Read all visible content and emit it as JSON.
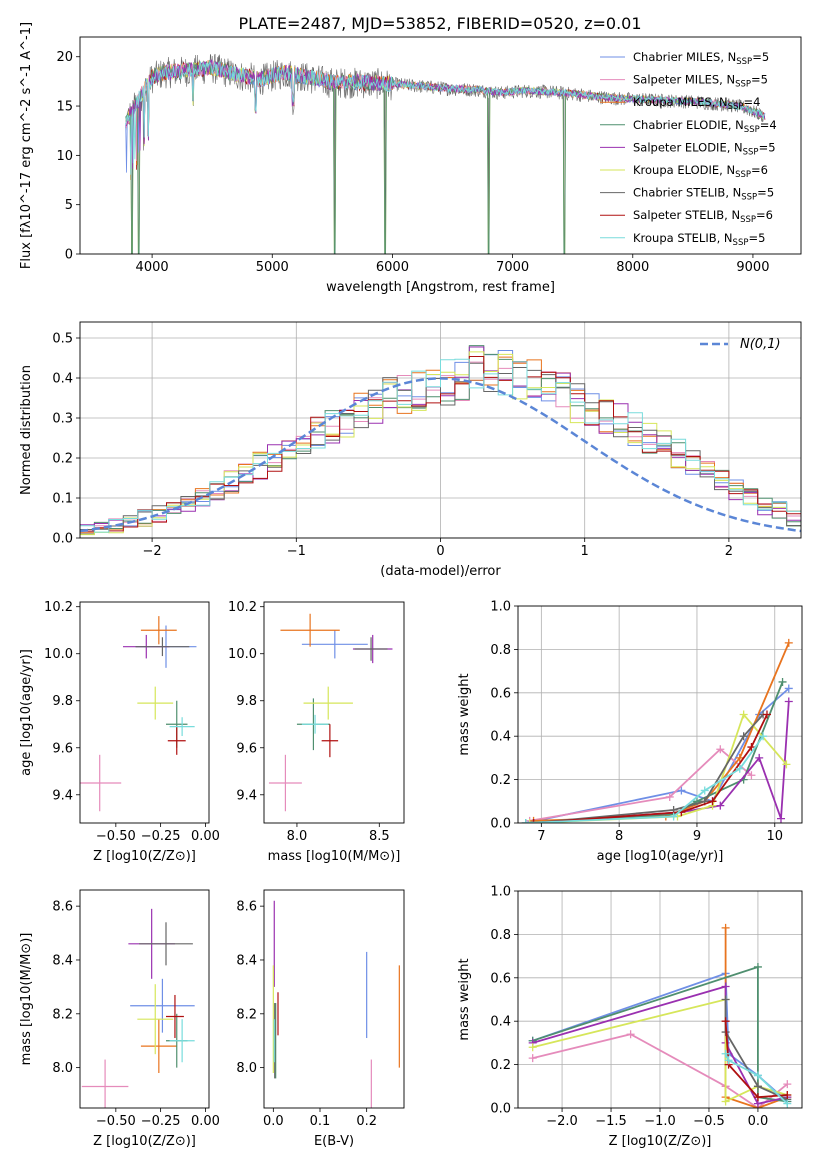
{
  "figure_title": "PLATE=2487, MJD=53852, FIBERID=0520, z=0.01",
  "series_colors": {
    "Chabrier MILES": "#6f8fe6",
    "Salpeter MILES": "#e58bbb",
    "Kroupa MILES": "#e8741f",
    "Chabrier ELODIE": "#4f8f6f",
    "Salpeter ELODIE": "#9a30b0",
    "Kroupa ELODIE": "#d6e65a",
    "Chabrier STELIB": "#666666",
    "Salpeter STELIB": "#b01010",
    "Kroupa STELIB": "#78dcdc"
  },
  "chart_data": [
    {
      "id": "spectrum",
      "type": "line",
      "xlabel": "wavelength [Angstrom, rest frame]",
      "ylabel": "Flux [fλ10^-17 erg cm^-2 s^-1 A^-1]",
      "xlim": [
        3400,
        9400
      ],
      "ylim": [
        0,
        22
      ],
      "xticks": [
        4000,
        5000,
        6000,
        7000,
        8000,
        9000
      ],
      "yticks": [
        0,
        5,
        10,
        15,
        20
      ],
      "grid": false,
      "legend_position": "top-right",
      "legend": [
        {
          "name": "Chabrier MILES",
          "nssp": "5"
        },
        {
          "name": "Salpeter MILES",
          "nssp": "5"
        },
        {
          "name": "Kroupa MILES",
          "nssp": "4"
        },
        {
          "name": "Chabrier ELODIE",
          "nssp": "4"
        },
        {
          "name": "Salpeter ELODIE",
          "nssp": "5"
        },
        {
          "name": "Kroupa ELODIE",
          "nssp": "6"
        },
        {
          "name": "Chabrier STELIB",
          "nssp": "5"
        },
        {
          "name": "Salpeter STELIB",
          "nssp": "6"
        },
        {
          "name": "Kroupa STELIB",
          "nssp": "5"
        }
      ],
      "spectrum_continuum": {
        "x": [
          3780,
          3900,
          4000,
          4100,
          4300,
          4500,
          4700,
          4900,
          5100,
          5300,
          5500,
          5700,
          5900,
          6100,
          6300,
          6500,
          6700,
          6900,
          7100,
          7300,
          7500,
          7700,
          7900,
          8100,
          8300,
          8500,
          8700,
          8900,
          9100
        ],
        "y": [
          13.5,
          16.0,
          18.0,
          18.5,
          18.7,
          19.0,
          18.3,
          17.8,
          18.5,
          18.0,
          17.5,
          17.5,
          17.4,
          17.2,
          17.0,
          16.8,
          16.7,
          16.4,
          16.6,
          16.5,
          16.3,
          16.0,
          15.8,
          15.7,
          15.6,
          15.5,
          15.3,
          15.0,
          14.0
        ]
      },
      "notable_dips": [
        {
          "x": 3830,
          "y": 0
        },
        {
          "x": 3890,
          "y": 0
        },
        {
          "x": 5520,
          "y": 0
        },
        {
          "x": 5940,
          "y": 0
        },
        {
          "x": 6800,
          "y": 0
        },
        {
          "x": 7430,
          "y": 0
        }
      ]
    },
    {
      "id": "residuals",
      "type": "line",
      "xlabel": "(data-model)/error",
      "ylabel": "Normed distribution",
      "xlim": [
        -2.5,
        2.5
      ],
      "ylim": [
        0,
        0.54
      ],
      "xticks": [
        -2,
        -1,
        0,
        1,
        2
      ],
      "yticks": [
        0.0,
        0.1,
        0.2,
        0.3,
        0.4,
        0.5
      ],
      "grid": true,
      "legend_position": "top-right",
      "legend": [
        {
          "name": "N(0,1)"
        }
      ],
      "normal_curve": {
        "mu": 0,
        "sigma": 1
      },
      "bin_edges_start": -2.5,
      "bin_width": 0.1,
      "histogram_base": [
        0.02,
        0.025,
        0.03,
        0.04,
        0.05,
        0.06,
        0.07,
        0.08,
        0.1,
        0.12,
        0.14,
        0.16,
        0.18,
        0.2,
        0.22,
        0.24,
        0.26,
        0.28,
        0.3,
        0.32,
        0.33,
        0.35,
        0.36,
        0.37,
        0.38,
        0.39,
        0.4,
        0.42,
        0.42,
        0.41,
        0.4,
        0.39,
        0.38,
        0.36,
        0.34,
        0.33,
        0.31,
        0.29,
        0.27,
        0.25,
        0.23,
        0.21,
        0.19,
        0.16,
        0.14,
        0.12,
        0.1,
        0.08,
        0.07,
        0.05
      ]
    },
    {
      "id": "age_vs_Z",
      "type": "scatter",
      "xlabel": "Z [log10(Z/Z⊙)]",
      "ylabel": "age  [log10(age/yr)]",
      "xlim": [
        -0.7,
        0.02
      ],
      "ylim": [
        9.28,
        10.22
      ],
      "xticks": [
        -0.5,
        -0.25,
        0.0
      ],
      "yticks": [
        9.4,
        9.6,
        9.8,
        10.0,
        10.2
      ],
      "grid": false,
      "points": [
        {
          "series": "Chabrier MILES",
          "x": -0.22,
          "y": 10.03,
          "xerr": 0.17,
          "yerr": 0.09
        },
        {
          "series": "Salpeter MILES",
          "x": -0.59,
          "y": 9.45,
          "xerr": 0.12,
          "yerr": 0.12
        },
        {
          "series": "Kroupa MILES",
          "x": -0.26,
          "y": 10.1,
          "xerr": 0.1,
          "yerr": 0.06
        },
        {
          "series": "Chabrier ELODIE",
          "x": -0.16,
          "y": 9.7,
          "xerr": 0.06,
          "yerr": 0.1
        },
        {
          "series": "Salpeter ELODIE",
          "x": -0.33,
          "y": 10.03,
          "xerr": 0.13,
          "yerr": 0.05
        },
        {
          "series": "Kroupa ELODIE",
          "x": -0.28,
          "y": 9.79,
          "xerr": 0.1,
          "yerr": 0.07
        },
        {
          "series": "Chabrier STELIB",
          "x": -0.24,
          "y": 10.03,
          "xerr": 0.15,
          "yerr": 0.04
        },
        {
          "series": "Salpeter STELIB",
          "x": -0.16,
          "y": 9.63,
          "xerr": 0.05,
          "yerr": 0.06
        },
        {
          "series": "Kroupa STELIB",
          "x": -0.13,
          "y": 9.69,
          "xerr": 0.07,
          "yerr": 0.04
        }
      ]
    },
    {
      "id": "age_vs_mass",
      "type": "scatter",
      "xlabel": "mass [log10(M/M⊙)]",
      "ylabel": "",
      "xlim": [
        7.8,
        8.65
      ],
      "ylim": [
        9.28,
        10.22
      ],
      "xticks": [
        8.0,
        8.5
      ],
      "yticks": [
        9.4,
        9.6,
        9.8,
        10.0,
        10.2
      ],
      "grid": false,
      "points": [
        {
          "series": "Chabrier MILES",
          "x": 8.23,
          "y": 10.04,
          "xerr": 0.2,
          "yerr": 0.06
        },
        {
          "series": "Salpeter MILES",
          "x": 7.93,
          "y": 9.45,
          "xerr": 0.1,
          "yerr": 0.12
        },
        {
          "series": "Kroupa MILES",
          "x": 8.08,
          "y": 10.1,
          "xerr": 0.18,
          "yerr": 0.07
        },
        {
          "series": "Chabrier ELODIE",
          "x": 8.1,
          "y": 9.7,
          "xerr": 0.1,
          "yerr": 0.11
        },
        {
          "series": "Salpeter ELODIE",
          "x": 8.46,
          "y": 10.02,
          "xerr": 0.12,
          "yerr": 0.06
        },
        {
          "series": "Kroupa ELODIE",
          "x": 8.19,
          "y": 9.79,
          "xerr": 0.15,
          "yerr": 0.07
        },
        {
          "series": "Chabrier STELIB",
          "x": 8.45,
          "y": 10.02,
          "xerr": 0.1,
          "yerr": 0.05
        },
        {
          "series": "Salpeter STELIB",
          "x": 8.2,
          "y": 9.63,
          "xerr": 0.05,
          "yerr": 0.07
        },
        {
          "series": "Kroupa STELIB",
          "x": 8.11,
          "y": 9.7,
          "xerr": 0.08,
          "yerr": 0.04
        }
      ]
    },
    {
      "id": "weight_vs_age",
      "type": "line",
      "xlabel": "age  [log10(age/yr)]",
      "ylabel": "mass weight",
      "xlim": [
        6.7,
        10.35
      ],
      "ylim": [
        0,
        1.0
      ],
      "xticks": [
        7,
        8,
        9,
        10
      ],
      "yticks": [
        0.0,
        0.2,
        0.4,
        0.6,
        0.8,
        1.0
      ],
      "grid": true,
      "series": [
        {
          "name": "Chabrier MILES",
          "x": [
            6.8,
            8.8,
            9.2,
            9.8,
            10.18
          ],
          "y": [
            0.0,
            0.15,
            0.1,
            0.5,
            0.62
          ]
        },
        {
          "name": "Salpeter MILES",
          "x": [
            6.85,
            8.65,
            9.3,
            9.7
          ],
          "y": [
            0.01,
            0.12,
            0.34,
            0.22
          ]
        },
        {
          "name": "Kroupa MILES",
          "x": [
            6.9,
            8.6,
            9.1,
            9.55,
            10.18
          ],
          "y": [
            0.01,
            0.03,
            0.1,
            0.3,
            0.83
          ]
        },
        {
          "name": "Chabrier ELODIE",
          "x": [
            6.8,
            8.7,
            9.0,
            9.6,
            10.1
          ],
          "y": [
            0.0,
            0.04,
            0.1,
            0.2,
            0.65
          ]
        },
        {
          "name": "Salpeter ELODIE",
          "x": [
            6.9,
            8.8,
            9.3,
            9.8,
            10.08,
            10.18
          ],
          "y": [
            0.0,
            0.05,
            0.08,
            0.3,
            0.02,
            0.56
          ]
        },
        {
          "name": "Kroupa ELODIE",
          "x": [
            6.85,
            8.75,
            9.2,
            9.6,
            10.15
          ],
          "y": [
            0.0,
            0.03,
            0.08,
            0.5,
            0.27
          ]
        },
        {
          "name": "Chabrier STELIB",
          "x": [
            6.9,
            8.7,
            9.1,
            9.6,
            9.85
          ],
          "y": [
            0.0,
            0.06,
            0.1,
            0.4,
            0.5
          ]
        },
        {
          "name": "Salpeter STELIB",
          "x": [
            6.9,
            8.8,
            9.2,
            9.7,
            9.9
          ],
          "y": [
            0.0,
            0.05,
            0.1,
            0.35,
            0.5
          ]
        },
        {
          "name": "Kroupa STELIB",
          "x": [
            6.8,
            8.7,
            9.1,
            9.55,
            9.85
          ],
          "y": [
            0.0,
            0.03,
            0.15,
            0.25,
            0.4
          ]
        }
      ]
    },
    {
      "id": "mass_vs_Z",
      "type": "scatter",
      "xlabel": "Z [log10(Z/Z⊙)]",
      "ylabel": "mass [log10(M/M⊙)]",
      "xlim": [
        -0.7,
        0.02
      ],
      "ylim": [
        7.85,
        8.66
      ],
      "xticks": [
        -0.5,
        -0.25,
        0.0
      ],
      "yticks": [
        8.0,
        8.2,
        8.4,
        8.6
      ],
      "grid": false,
      "points": [
        {
          "series": "Chabrier MILES",
          "x": -0.24,
          "y": 8.23,
          "xerr": 0.18,
          "yerr": 0.1
        },
        {
          "series": "Salpeter MILES",
          "x": -0.56,
          "y": 7.93,
          "xerr": 0.13,
          "yerr": 0.1
        },
        {
          "series": "Kroupa MILES",
          "x": -0.26,
          "y": 8.08,
          "xerr": 0.1,
          "yerr": 0.1
        },
        {
          "series": "Chabrier ELODIE",
          "x": -0.16,
          "y": 8.1,
          "xerr": 0.06,
          "yerr": 0.1
        },
        {
          "series": "Salpeter ELODIE",
          "x": -0.3,
          "y": 8.46,
          "xerr": 0.13,
          "yerr": 0.13
        },
        {
          "series": "Kroupa ELODIE",
          "x": -0.28,
          "y": 8.18,
          "xerr": 0.1,
          "yerr": 0.13
        },
        {
          "series": "Chabrier STELIB",
          "x": -0.22,
          "y": 8.46,
          "xerr": 0.15,
          "yerr": 0.08
        },
        {
          "series": "Salpeter STELIB",
          "x": -0.17,
          "y": 8.19,
          "xerr": 0.05,
          "yerr": 0.08
        },
        {
          "series": "Kroupa STELIB",
          "x": -0.13,
          "y": 8.1,
          "xerr": 0.07,
          "yerr": 0.08
        }
      ]
    },
    {
      "id": "mass_vs_ebv",
      "type": "scatter",
      "xlabel": "E(B-V)",
      "ylabel": "",
      "xlim": [
        -0.02,
        0.28
      ],
      "ylim": [
        7.85,
        8.66
      ],
      "xticks": [
        0.0,
        0.1,
        0.2
      ],
      "yticks": [
        8.0,
        8.2,
        8.4,
        8.6
      ],
      "grid": false,
      "points": [
        {
          "series": "Chabrier MILES",
          "x": 0.2,
          "y": 8.27,
          "xerr": 0.0,
          "yerr": 0.16
        },
        {
          "series": "Salpeter MILES",
          "x": 0.21,
          "y": 7.93,
          "xerr": 0.0,
          "yerr": 0.1
        },
        {
          "series": "Kroupa MILES",
          "x": 0.27,
          "y": 8.19,
          "xerr": 0.0,
          "yerr": 0.19
        },
        {
          "series": "Chabrier ELODIE",
          "x": 0.005,
          "y": 8.1,
          "xerr": 0.0,
          "yerr": 0.14
        },
        {
          "series": "Salpeter ELODIE",
          "x": 0.002,
          "y": 8.46,
          "xerr": 0.0,
          "yerr": 0.16
        },
        {
          "series": "Kroupa ELODIE",
          "x": 0.0,
          "y": 8.18,
          "xerr": 0.0,
          "yerr": 0.2
        },
        {
          "series": "Chabrier STELIB",
          "x": 0.003,
          "y": 8.1,
          "xerr": 0.0,
          "yerr": 0.14
        },
        {
          "series": "Salpeter STELIB",
          "x": 0.01,
          "y": 8.2,
          "xerr": 0.0,
          "yerr": 0.08
        },
        {
          "series": "Kroupa STELIB",
          "x": 0.002,
          "y": 8.1,
          "xerr": 0.0,
          "yerr": 0.08
        }
      ]
    },
    {
      "id": "weight_vs_Z",
      "type": "line",
      "xlabel": "Z [log10(Z/Z⊙)]",
      "ylabel": "mass weight",
      "xlim": [
        -2.45,
        0.45
      ],
      "ylim": [
        0,
        1.0
      ],
      "xticks": [
        -2.0,
        -1.5,
        -1.0,
        -0.5,
        0.0
      ],
      "yticks": [
        0.0,
        0.2,
        0.4,
        0.6,
        0.8,
        1.0
      ],
      "grid": true,
      "series": [
        {
          "name": "Chabrier MILES",
          "x": [
            -2.3,
            -0.33,
            -0.3,
            0.0,
            0.3
          ],
          "y": [
            0.31,
            0.62,
            0.25,
            0.15,
            0.03
          ]
        },
        {
          "name": "Salpeter MILES",
          "x": [
            -2.3,
            -1.3,
            -0.33,
            0.0,
            0.3
          ],
          "y": [
            0.23,
            0.34,
            0.1,
            0.0,
            0.11
          ]
        },
        {
          "name": "Kroupa MILES",
          "x": [
            -0.33,
            -0.33,
            0.0,
            0.3
          ],
          "y": [
            0.83,
            0.05,
            0.0,
            0.05
          ]
        },
        {
          "name": "Chabrier ELODIE",
          "x": [
            -2.3,
            0.0,
            0.0,
            0.3
          ],
          "y": [
            0.31,
            0.65,
            0.05,
            0.03
          ]
        },
        {
          "name": "Salpeter ELODIE",
          "x": [
            -2.3,
            -0.33,
            -0.33,
            0.0,
            0.3
          ],
          "y": [
            0.3,
            0.56,
            0.3,
            0.02,
            0.05
          ]
        },
        {
          "name": "Kroupa ELODIE",
          "x": [
            -2.3,
            -0.33,
            -0.33,
            0.0,
            0.3
          ],
          "y": [
            0.28,
            0.5,
            0.03,
            0.1,
            0.06
          ]
        },
        {
          "name": "Chabrier STELIB",
          "x": [
            -0.33,
            -0.33,
            0.0,
            0.3
          ],
          "y": [
            0.5,
            0.35,
            0.1,
            0.04
          ]
        },
        {
          "name": "Salpeter STELIB",
          "x": [
            -0.33,
            -0.3,
            0.0,
            0.3
          ],
          "y": [
            0.4,
            0.2,
            0.05,
            0.06
          ]
        },
        {
          "name": "Kroupa STELIB",
          "x": [
            -0.33,
            -0.3,
            0.0,
            0.3
          ],
          "y": [
            0.25,
            0.22,
            0.15,
            0.02
          ]
        }
      ]
    }
  ]
}
